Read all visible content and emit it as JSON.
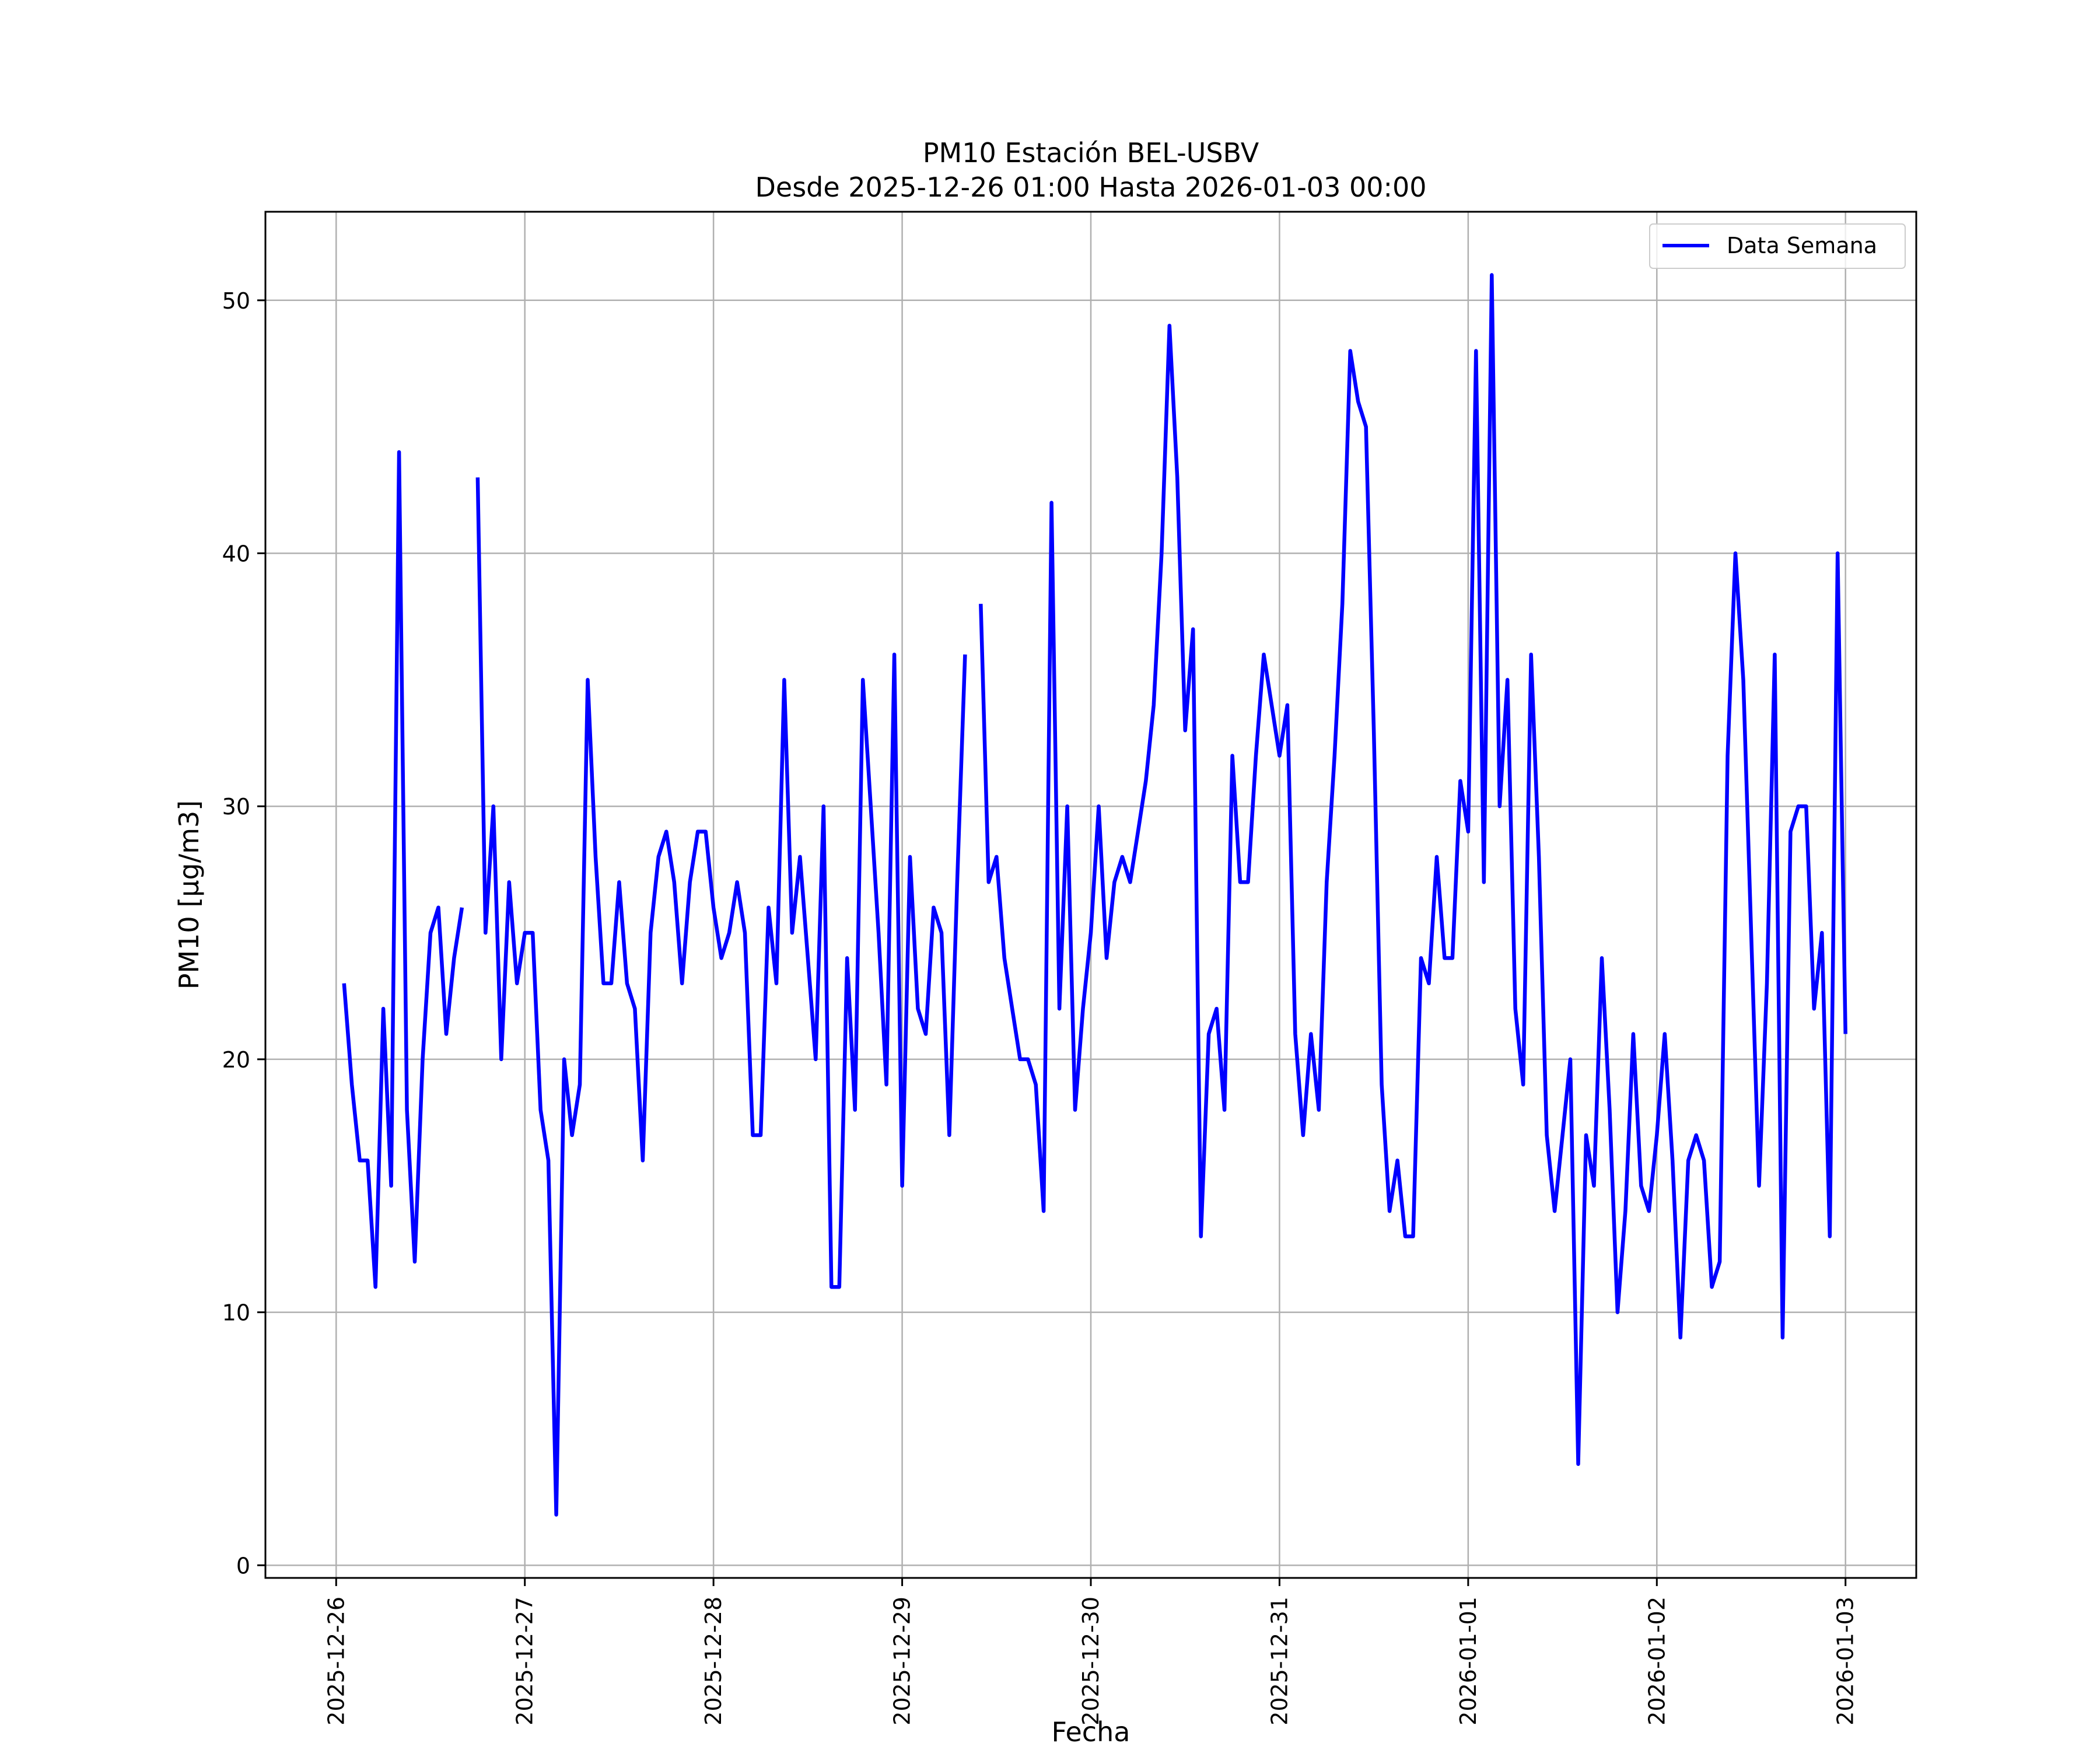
{
  "chart_data": {
    "type": "line",
    "title": "PM10 Estación BEL-USBV",
    "subtitle": "Desde 2025-12-26 01:00 Hasta 2026-01-03 00:00",
    "xlabel": "Fecha",
    "ylabel": "PM10 [μg/m3]",
    "ylim": [
      -0.5,
      53.5
    ],
    "xlim": [
      "2025-12-25 15:00",
      "2026-01-03 09:00"
    ],
    "x_ticks": [
      "2025-12-26",
      "2025-12-27",
      "2025-12-28",
      "2025-12-29",
      "2025-12-30",
      "2025-12-31",
      "2026-01-01",
      "2026-01-02",
      "2026-01-03"
    ],
    "y_ticks": [
      0,
      10,
      20,
      30,
      40,
      50
    ],
    "grid": true,
    "legend_position": "top-right",
    "colors": {
      "line": "#0000ff",
      "grid": "#b0b0b0",
      "frame": "#000000"
    },
    "series": [
      {
        "name": "Data Semana",
        "start": "2025-12-26 01:00",
        "step_hours": 1,
        "values": [
          23,
          19,
          16,
          16,
          11,
          22,
          15,
          44,
          18,
          12,
          20,
          25,
          26,
          21,
          24,
          26,
          null,
          43,
          25,
          30,
          20,
          27,
          23,
          25,
          25,
          18,
          16,
          2,
          20,
          17,
          19,
          35,
          28,
          23,
          23,
          27,
          23,
          22,
          16,
          25,
          28,
          29,
          27,
          23,
          27,
          29,
          29,
          26,
          24,
          25,
          27,
          25,
          17,
          17,
          26,
          23,
          35,
          25,
          28,
          24,
          20,
          30,
          11,
          11,
          24,
          18,
          35,
          30,
          25,
          19,
          36,
          15,
          28,
          22,
          21,
          26,
          25,
          17,
          27,
          36,
          null,
          38,
          27,
          28,
          24,
          22,
          20,
          20,
          19,
          14,
          42,
          22,
          30,
          18,
          22,
          25,
          30,
          24,
          27,
          28,
          27,
          29,
          31,
          34,
          40,
          49,
          43,
          33,
          37,
          13,
          21,
          22,
          18,
          32,
          27,
          27,
          32,
          36,
          34,
          32,
          34,
          21,
          17,
          21,
          18,
          27,
          32,
          38,
          48,
          46,
          45,
          33,
          19,
          14,
          16,
          13,
          13,
          24,
          23,
          28,
          24,
          24,
          31,
          29,
          48,
          27,
          51,
          30,
          35,
          22,
          19,
          36,
          28,
          17,
          14,
          17,
          20,
          4,
          17,
          15,
          24,
          18,
          10,
          14,
          21,
          15,
          14,
          17,
          21,
          16,
          9,
          16,
          17,
          16,
          11,
          12,
          32,
          40,
          35,
          25,
          15,
          23,
          36,
          9,
          29,
          30,
          30,
          22,
          25,
          13,
          40,
          21
        ]
      }
    ]
  }
}
